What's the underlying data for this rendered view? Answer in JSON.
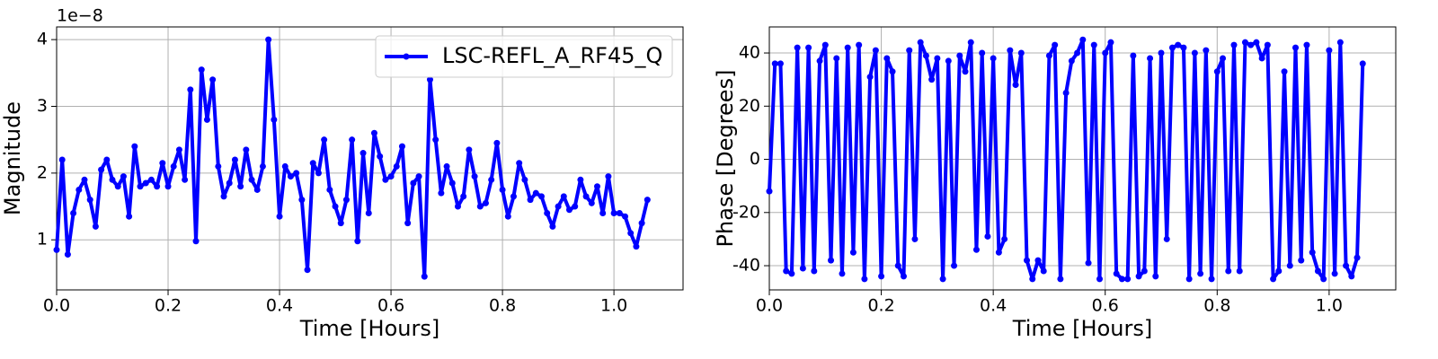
{
  "chart_data": [
    {
      "type": "line",
      "xlabel": "Time [Hours]",
      "ylabel": "Magnitude",
      "offset_text": "1e−8",
      "grid": true,
      "legend": "upper right",
      "xlim": [
        0,
        1.124
      ],
      "ylim": [
        0.25,
        4.19
      ],
      "xticks": [
        {
          "value": 0,
          "label": "0.0"
        },
        {
          "value": 0.2,
          "label": "0.2"
        },
        {
          "value": 0.4,
          "label": "0.4"
        },
        {
          "value": 0.6,
          "label": "0.6"
        },
        {
          "value": 0.8,
          "label": "0.8"
        },
        {
          "value": 1.0,
          "label": "1.0"
        }
      ],
      "yticks": [
        1,
        2,
        3,
        4
      ],
      "x": [
        0,
        0.01,
        0.02,
        0.03,
        0.04,
        0.05,
        0.06,
        0.07,
        0.08,
        0.09,
        0.1,
        0.11,
        0.12,
        0.13,
        0.14,
        0.15,
        0.16,
        0.17,
        0.18,
        0.19,
        0.2,
        0.21,
        0.22,
        0.23,
        0.24,
        0.25,
        0.26,
        0.27,
        0.28,
        0.29,
        0.3,
        0.31,
        0.32,
        0.33,
        0.34,
        0.35,
        0.36,
        0.37,
        0.38,
        0.39,
        0.4,
        0.41,
        0.42,
        0.43,
        0.44,
        0.45,
        0.46,
        0.47,
        0.48,
        0.49,
        0.5,
        0.51,
        0.52,
        0.53,
        0.54,
        0.55,
        0.56,
        0.57,
        0.58,
        0.59,
        0.6,
        0.61,
        0.62,
        0.63,
        0.64,
        0.65,
        0.66,
        0.67,
        0.68,
        0.69,
        0.7,
        0.71,
        0.72,
        0.73,
        0.74,
        0.75,
        0.76,
        0.77,
        0.78,
        0.79,
        0.8,
        0.81,
        0.82,
        0.83,
        0.84,
        0.85,
        0.86,
        0.87,
        0.88,
        0.89,
        0.9,
        0.91,
        0.92,
        0.93,
        0.94,
        0.95,
        0.96,
        0.97,
        0.98,
        0.99,
        1.0,
        1.01,
        1.02,
        1.03,
        1.04,
        1.05,
        1.06
      ],
      "series": [
        {
          "name": "LSC-REFL_A_RF45_Q",
          "color": "#0000ff",
          "values": [
            0.85,
            2.2,
            0.78,
            1.4,
            1.75,
            1.9,
            1.6,
            1.2,
            2.05,
            2.2,
            1.9,
            1.8,
            1.95,
            1.35,
            2.4,
            1.8,
            1.85,
            1.9,
            1.8,
            2.15,
            1.8,
            2.1,
            2.35,
            1.9,
            3.25,
            0.98,
            3.55,
            2.8,
            3.4,
            2.1,
            1.65,
            1.85,
            2.2,
            1.8,
            2.35,
            1.9,
            1.75,
            2.1,
            4.0,
            2.8,
            1.35,
            2.1,
            1.95,
            2.0,
            1.6,
            0.55,
            2.15,
            2.0,
            2.5,
            1.75,
            1.5,
            1.25,
            1.6,
            2.5,
            0.98,
            2.3,
            1.4,
            2.6,
            2.25,
            1.9,
            1.95,
            2.1,
            2.4,
            1.25,
            1.85,
            1.95,
            0.45,
            3.4,
            2.5,
            1.7,
            2.1,
            1.85,
            1.5,
            1.65,
            2.35,
            1.95,
            1.5,
            1.55,
            1.9,
            2.45,
            1.75,
            1.35,
            1.65,
            2.15,
            1.9,
            1.6,
            1.7,
            1.65,
            1.4,
            1.2,
            1.5,
            1.65,
            1.45,
            1.5,
            1.9,
            1.65,
            1.55,
            1.8,
            1.4,
            1.95,
            1.4,
            1.4,
            1.35,
            1.1,
            0.9,
            1.25,
            1.6
          ]
        }
      ]
    },
    {
      "type": "line",
      "xlabel": "Time [Hours]",
      "ylabel": "Phase [Degrees]",
      "grid": true,
      "xlim": [
        0,
        1.119
      ],
      "ylim": [
        -49.1,
        49.8
      ],
      "xticks": [
        {
          "value": 0,
          "label": "0.0"
        },
        {
          "value": 0.2,
          "label": "0.2"
        },
        {
          "value": 0.4,
          "label": "0.4"
        },
        {
          "value": 0.6,
          "label": "0.6"
        },
        {
          "value": 0.8,
          "label": "0.8"
        },
        {
          "value": 1.0,
          "label": "1.0"
        }
      ],
      "yticks": [
        -40,
        -20,
        0,
        20,
        40
      ],
      "x": [
        0,
        0.01,
        0.02,
        0.03,
        0.04,
        0.05,
        0.06,
        0.07,
        0.08,
        0.09,
        0.1,
        0.11,
        0.12,
        0.13,
        0.14,
        0.15,
        0.16,
        0.17,
        0.18,
        0.19,
        0.2,
        0.21,
        0.22,
        0.23,
        0.24,
        0.25,
        0.26,
        0.27,
        0.28,
        0.29,
        0.3,
        0.31,
        0.32,
        0.33,
        0.34,
        0.35,
        0.36,
        0.37,
        0.38,
        0.39,
        0.4,
        0.41,
        0.42,
        0.43,
        0.44,
        0.45,
        0.46,
        0.47,
        0.48,
        0.49,
        0.5,
        0.51,
        0.52,
        0.53,
        0.54,
        0.55,
        0.56,
        0.57,
        0.58,
        0.59,
        0.6,
        0.61,
        0.62,
        0.63,
        0.64,
        0.65,
        0.66,
        0.67,
        0.68,
        0.69,
        0.7,
        0.71,
        0.72,
        0.73,
        0.74,
        0.75,
        0.76,
        0.77,
        0.78,
        0.79,
        0.8,
        0.81,
        0.82,
        0.83,
        0.84,
        0.85,
        0.86,
        0.87,
        0.88,
        0.89,
        0.9,
        0.91,
        0.92,
        0.93,
        0.94,
        0.95,
        0.96,
        0.97,
        0.98,
        0.99,
        1.0,
        1.01,
        1.02,
        1.03,
        1.04,
        1.05,
        1.06
      ],
      "series": [
        {
          "color": "#0000ff",
          "values": [
            -12,
            36,
            36,
            -42,
            -43,
            42,
            -41,
            42,
            -42,
            37,
            43,
            -38,
            38,
            -43,
            42,
            -35,
            43,
            -45,
            31,
            41,
            -44,
            38,
            33,
            -40,
            -44,
            41,
            -30,
            44,
            39,
            30,
            38,
            -45,
            37,
            -40,
            39,
            33,
            44,
            -34,
            40,
            -29,
            38,
            -35,
            -30,
            41,
            28,
            40,
            -38,
            -45,
            -38,
            -42,
            39,
            43,
            -45,
            25,
            37,
            40,
            45,
            -39,
            43,
            -45,
            40,
            44,
            -43,
            -45,
            -45,
            39,
            -44,
            -42,
            38,
            -44,
            40,
            -30,
            42,
            43,
            42,
            -45,
            40,
            -43,
            41,
            -45,
            33,
            38,
            -42,
            43,
            -42,
            44,
            43,
            44,
            38,
            43,
            -45,
            -42,
            33,
            -40,
            42,
            -38,
            43,
            -35,
            -42,
            -45,
            41,
            -43,
            44,
            -40,
            -44,
            -37,
            36
          ]
        }
      ]
    }
  ]
}
